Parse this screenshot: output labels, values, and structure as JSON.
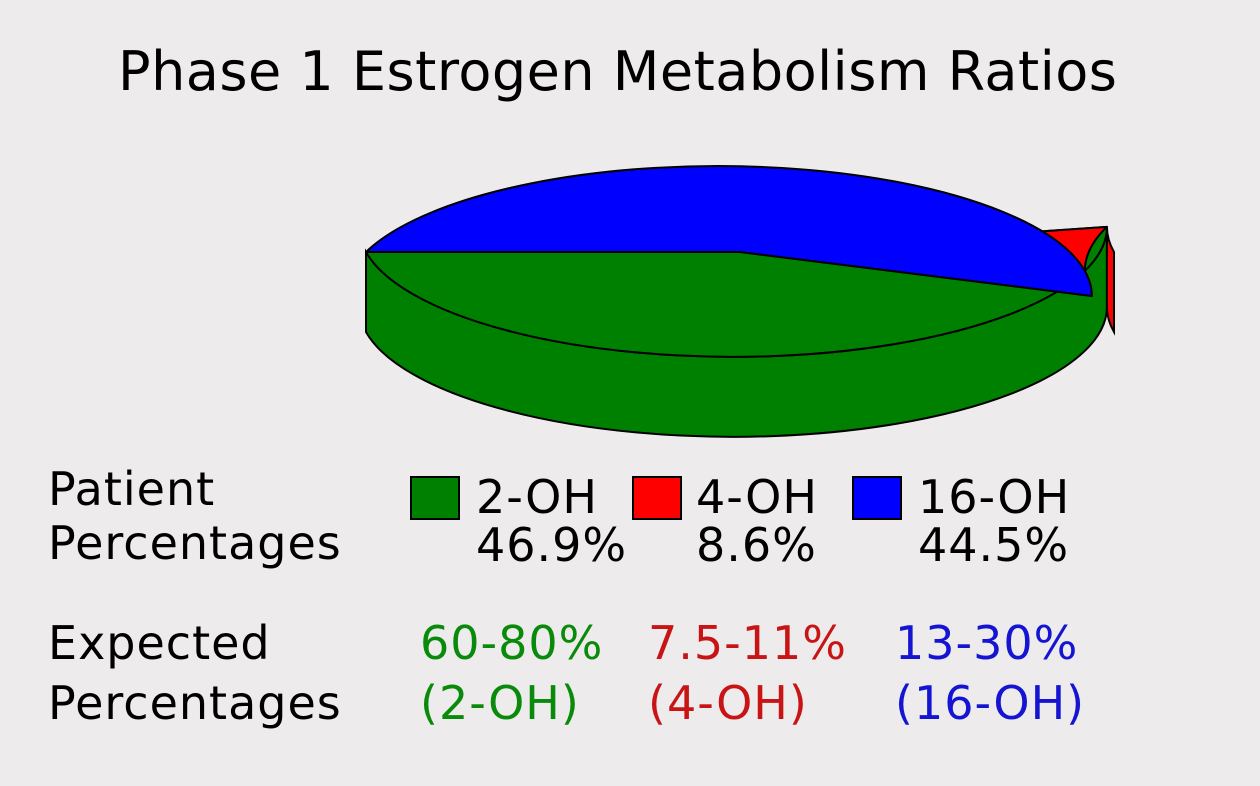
{
  "chart_data": {
    "type": "pie",
    "title": "Phase 1 Estrogen Metabolism Ratios",
    "slices": [
      {
        "name": "2-OH",
        "value": 46.9,
        "label": "46.9%",
        "color": "#008000"
      },
      {
        "name": "4-OH",
        "value": 8.6,
        "label": "8.6%",
        "color": "#ff0000"
      },
      {
        "name": "16-OH",
        "value": 44.5,
        "label": "44.5%",
        "color": "#0000ff"
      }
    ],
    "legend_placement": "bottom"
  },
  "patient": {
    "label_line1": "Patient",
    "label_line2": "Percentages"
  },
  "expected": {
    "label_line1": "Expected",
    "label_line2": "Percentages",
    "items": [
      {
        "range": "60-80%",
        "name": "(2-OH)",
        "color": "#0a8a0a"
      },
      {
        "range": "7.5-11%",
        "name": "(4-OH)",
        "color": "#c81414"
      },
      {
        "range": "13-30%",
        "name": "(16-OH)",
        "color": "#1414d2"
      }
    ]
  }
}
